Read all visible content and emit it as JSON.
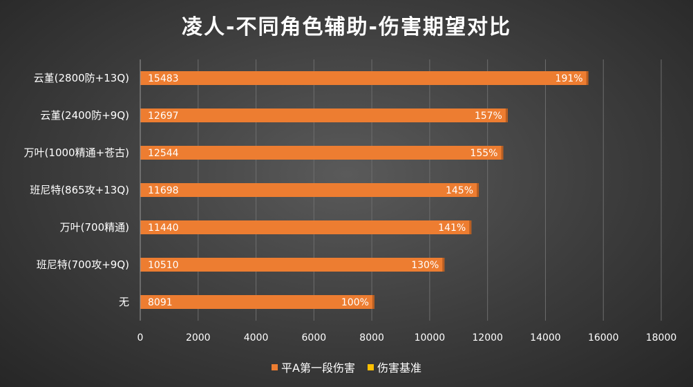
{
  "chart_data": {
    "type": "bar",
    "orientation": "horizontal",
    "title": "凌人-不同角色辅助-伤害期望对比",
    "categories": [
      "云堇(2800防+13Q)",
      "云堇(2400防+9Q)",
      "万叶(1000精通+苍古)",
      "班尼特(865攻+13Q)",
      "万叶(700精通)",
      "班尼特(700攻+9Q)",
      "无"
    ],
    "series": [
      {
        "name": "平A第一段伤害",
        "color": "#ED7D31",
        "values": [
          15483,
          12697,
          12544,
          11698,
          11440,
          10510,
          8091
        ],
        "value_labels": [
          "15483",
          "12697",
          "12544",
          "11698",
          "11440",
          "10510",
          "8091"
        ]
      },
      {
        "name": "伤害基准",
        "color": "#FFC000",
        "values": [
          1.91,
          1.57,
          1.55,
          1.45,
          1.41,
          1.3,
          1.0
        ],
        "value_labels": [
          "191%",
          "157%",
          "155%",
          "145%",
          "141%",
          "130%",
          "100%"
        ]
      }
    ],
    "xlim": [
      0,
      18000
    ],
    "xticks": [
      0,
      2000,
      4000,
      6000,
      8000,
      10000,
      12000,
      14000,
      16000,
      18000
    ],
    "xtick_labels": [
      "0",
      "2000",
      "4000",
      "6000",
      "8000",
      "10000",
      "12000",
      "14000",
      "16000",
      "18000"
    ],
    "grid": true,
    "legend_position": "bottom"
  }
}
